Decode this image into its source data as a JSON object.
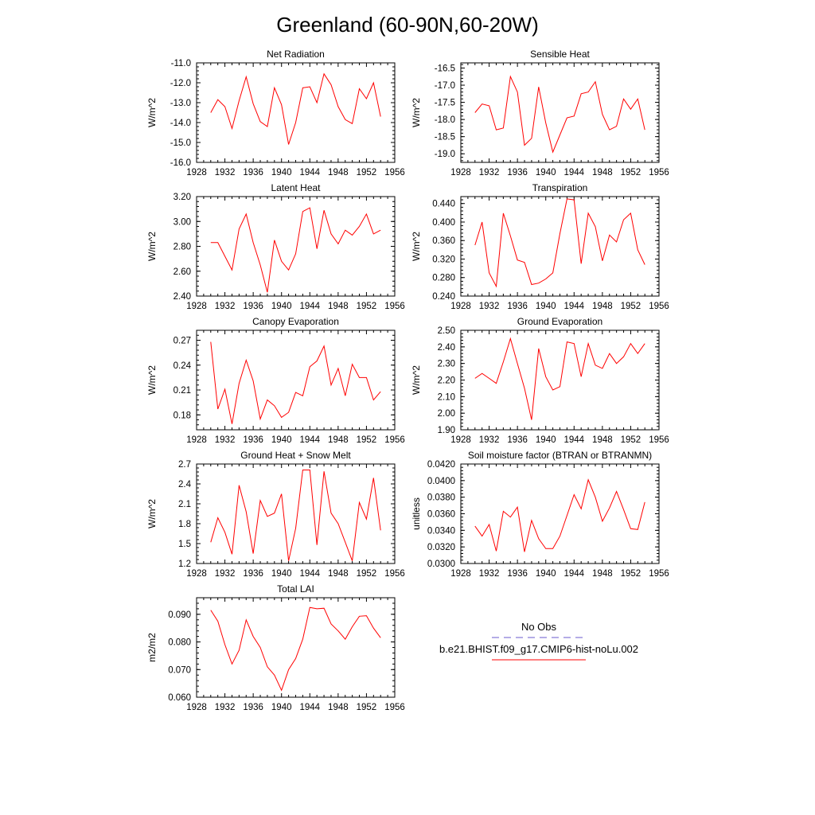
{
  "figure": {
    "title": "Greenland (60-90N,60-20W)",
    "legend": {
      "entries": [
        {
          "label": "No Obs",
          "color": "#6a5acd",
          "style": "dashed"
        },
        {
          "label": "b.e21.BHIST.f09_g17.CMIP6-hist-noLu.002",
          "color": "#ff0000",
          "style": "solid"
        }
      ]
    }
  },
  "chart_data": [
    {
      "type": "line",
      "title": "Net Radiation",
      "ylabel": "W/m^2",
      "xlim": [
        1928,
        1956
      ],
      "xticks": [
        1928,
        1932,
        1936,
        1940,
        1944,
        1948,
        1952,
        1956
      ],
      "ylim": [
        -16.0,
        -11.0
      ],
      "yticks": [
        -16.0,
        -15.0,
        -14.0,
        -13.0,
        -12.0,
        -11.0
      ],
      "ytick_labels": [
        "-16.0",
        "-15.0",
        "-14.0",
        "-13.0",
        "-12.0",
        "-11.0"
      ],
      "series": [
        {
          "color": "#ff0000",
          "x": [
            1930,
            1931,
            1932,
            1933,
            1934,
            1935,
            1936,
            1937,
            1938,
            1939,
            1940,
            1941,
            1942,
            1943,
            1944,
            1945,
            1946,
            1947,
            1948,
            1949,
            1950,
            1951,
            1952,
            1953,
            1954
          ],
          "values": [
            -13.5,
            -12.85,
            -13.2,
            -14.3,
            -12.9,
            -11.7,
            -13.05,
            -13.95,
            -14.2,
            -12.25,
            -13.1,
            -15.1,
            -14.0,
            -12.25,
            -12.2,
            -13.0,
            -11.55,
            -12.1,
            -13.2,
            -13.85,
            -14.05,
            -12.3,
            -12.8,
            -12.0,
            -13.7
          ]
        }
      ]
    },
    {
      "type": "line",
      "title": "Sensible Heat",
      "ylabel": "W/m^2",
      "xlim": [
        1928,
        1956
      ],
      "xticks": [
        1928,
        1932,
        1936,
        1940,
        1944,
        1948,
        1952,
        1956
      ],
      "ylim": [
        -19.25,
        -16.35
      ],
      "yticks": [
        -19.0,
        -18.5,
        -18.0,
        -17.5,
        -17.0,
        -16.5
      ],
      "ytick_labels": [
        "-19.0",
        "-18.5",
        "-18.0",
        "-17.5",
        "-17.0",
        "-16.5"
      ],
      "series": [
        {
          "color": "#ff0000",
          "x": [
            1930,
            1931,
            1932,
            1933,
            1934,
            1935,
            1936,
            1937,
            1938,
            1939,
            1940,
            1941,
            1942,
            1943,
            1944,
            1945,
            1946,
            1947,
            1948,
            1949,
            1950,
            1951,
            1952,
            1953,
            1954
          ],
          "values": [
            -17.8,
            -17.55,
            -17.6,
            -18.3,
            -18.25,
            -16.75,
            -17.2,
            -18.75,
            -18.55,
            -17.05,
            -18.1,
            -18.95,
            -18.45,
            -17.95,
            -17.9,
            -17.25,
            -17.2,
            -16.9,
            -17.85,
            -18.3,
            -18.2,
            -17.4,
            -17.7,
            -17.4,
            -18.3
          ]
        }
      ]
    },
    {
      "type": "line",
      "title": "Latent Heat",
      "ylabel": "W/m^2",
      "xlim": [
        1928,
        1956
      ],
      "xticks": [
        1928,
        1932,
        1936,
        1940,
        1944,
        1948,
        1952,
        1956
      ],
      "ylim": [
        2.4,
        3.2
      ],
      "yticks": [
        2.4,
        2.6,
        2.8,
        3.0,
        3.2
      ],
      "ytick_labels": [
        "2.40",
        "2.60",
        "2.80",
        "3.00",
        "3.20"
      ],
      "series": [
        {
          "color": "#ff0000",
          "x": [
            1930,
            1931,
            1932,
            1933,
            1934,
            1935,
            1936,
            1937,
            1938,
            1939,
            1940,
            1941,
            1942,
            1943,
            1944,
            1945,
            1946,
            1947,
            1948,
            1949,
            1950,
            1951,
            1952,
            1953,
            1954
          ],
          "values": [
            2.83,
            2.83,
            2.72,
            2.61,
            2.94,
            3.06,
            2.83,
            2.65,
            2.43,
            2.85,
            2.68,
            2.61,
            2.74,
            3.08,
            3.11,
            2.78,
            3.09,
            2.9,
            2.82,
            2.93,
            2.89,
            2.96,
            3.06,
            2.9,
            2.93
          ]
        }
      ]
    },
    {
      "type": "line",
      "title": "Transpiration",
      "ylabel": "W/m^2",
      "xlim": [
        1928,
        1956
      ],
      "xticks": [
        1928,
        1932,
        1936,
        1940,
        1944,
        1948,
        1952,
        1956
      ],
      "ylim": [
        0.24,
        0.455
      ],
      "yticks": [
        0.24,
        0.28,
        0.32,
        0.36,
        0.4,
        0.44
      ],
      "ytick_labels": [
        "0.240",
        "0.280",
        "0.320",
        "0.360",
        "0.400",
        "0.440"
      ],
      "series": [
        {
          "color": "#ff0000",
          "x": [
            1930,
            1931,
            1932,
            1933,
            1934,
            1935,
            1936,
            1937,
            1938,
            1939,
            1940,
            1941,
            1942,
            1943,
            1944,
            1945,
            1946,
            1947,
            1948,
            1949,
            1950,
            1951,
            1952,
            1953,
            1954
          ],
          "values": [
            0.35,
            0.4,
            0.29,
            0.261,
            0.419,
            0.37,
            0.318,
            0.313,
            0.265,
            0.268,
            0.277,
            0.29,
            0.375,
            0.45,
            0.448,
            0.31,
            0.419,
            0.39,
            0.316,
            0.372,
            0.357,
            0.405,
            0.419,
            0.34,
            0.308
          ]
        }
      ]
    },
    {
      "type": "line",
      "title": "Canopy Evaporation",
      "ylabel": "W/m^2",
      "xlim": [
        1928,
        1956
      ],
      "xticks": [
        1928,
        1932,
        1936,
        1940,
        1944,
        1948,
        1952,
        1956
      ],
      "ylim": [
        0.162,
        0.282
      ],
      "yticks": [
        0.18,
        0.21,
        0.24,
        0.27
      ],
      "ytick_labels": [
        "0.18",
        "0.21",
        "0.24",
        "0.27"
      ],
      "series": [
        {
          "color": "#ff0000",
          "x": [
            1930,
            1931,
            1932,
            1933,
            1934,
            1935,
            1936,
            1937,
            1938,
            1939,
            1940,
            1941,
            1942,
            1943,
            1944,
            1945,
            1946,
            1947,
            1948,
            1949,
            1950,
            1951,
            1952,
            1953,
            1954
          ],
          "values": [
            0.268,
            0.187,
            0.211,
            0.169,
            0.218,
            0.246,
            0.221,
            0.175,
            0.198,
            0.191,
            0.177,
            0.183,
            0.207,
            0.203,
            0.238,
            0.245,
            0.263,
            0.216,
            0.236,
            0.203,
            0.241,
            0.225,
            0.225,
            0.198,
            0.208
          ]
        }
      ]
    },
    {
      "type": "line",
      "title": "Ground Evaporation",
      "ylabel": "W/m^2",
      "xlim": [
        1928,
        1956
      ],
      "xticks": [
        1928,
        1932,
        1936,
        1940,
        1944,
        1948,
        1952,
        1956
      ],
      "ylim": [
        1.9,
        2.5
      ],
      "yticks": [
        1.9,
        2.0,
        2.1,
        2.2,
        2.3,
        2.4,
        2.5
      ],
      "ytick_labels": [
        "1.90",
        "2.00",
        "2.10",
        "2.20",
        "2.30",
        "2.40",
        "2.50"
      ],
      "series": [
        {
          "color": "#ff0000",
          "x": [
            1930,
            1931,
            1932,
            1933,
            1934,
            1935,
            1936,
            1937,
            1938,
            1939,
            1940,
            1941,
            1942,
            1943,
            1944,
            1945,
            1946,
            1947,
            1948,
            1949,
            1950,
            1951,
            1952,
            1953,
            1954
          ],
          "values": [
            2.21,
            2.24,
            2.21,
            2.18,
            2.31,
            2.45,
            2.3,
            2.15,
            1.96,
            2.39,
            2.22,
            2.14,
            2.16,
            2.43,
            2.42,
            2.22,
            2.42,
            2.29,
            2.27,
            2.36,
            2.3,
            2.34,
            2.42,
            2.36,
            2.42
          ]
        }
      ]
    },
    {
      "type": "line",
      "title": "Ground Heat + Snow Melt",
      "ylabel": "W/m^2",
      "xlim": [
        1928,
        1956
      ],
      "xticks": [
        1928,
        1932,
        1936,
        1940,
        1944,
        1948,
        1952,
        1956
      ],
      "ylim": [
        1.2,
        2.7
      ],
      "yticks": [
        1.2,
        1.5,
        1.8,
        2.1,
        2.4,
        2.7
      ],
      "ytick_labels": [
        "1.2",
        "1.5",
        "1.8",
        "2.1",
        "2.4",
        "2.7"
      ],
      "series": [
        {
          "color": "#ff0000",
          "x": [
            1930,
            1931,
            1932,
            1933,
            1934,
            1935,
            1936,
            1937,
            1938,
            1939,
            1940,
            1941,
            1942,
            1943,
            1944,
            1945,
            1946,
            1947,
            1948,
            1949,
            1950,
            1951,
            1952,
            1953,
            1954
          ],
          "values": [
            1.52,
            1.89,
            1.67,
            1.34,
            2.38,
            1.98,
            1.35,
            2.15,
            1.91,
            1.96,
            2.25,
            1.24,
            1.73,
            2.61,
            2.61,
            1.48,
            2.59,
            1.96,
            1.8,
            1.52,
            1.24,
            2.12,
            1.87,
            2.49,
            1.7
          ]
        }
      ]
    },
    {
      "type": "line",
      "title": "Soil moisture factor (BTRAN or BTRANMN)",
      "ylabel": "unitless",
      "xlim": [
        1928,
        1956
      ],
      "xticks": [
        1928,
        1932,
        1936,
        1940,
        1944,
        1948,
        1952,
        1956
      ],
      "ylim": [
        0.03,
        0.042
      ],
      "yticks": [
        0.03,
        0.032,
        0.034,
        0.036,
        0.038,
        0.04,
        0.042
      ],
      "ytick_labels": [
        "0.0300",
        "0.0320",
        "0.0340",
        "0.0360",
        "0.0380",
        "0.0400",
        "0.0420"
      ],
      "series": [
        {
          "color": "#ff0000",
          "x": [
            1930,
            1931,
            1932,
            1933,
            1934,
            1935,
            1936,
            1937,
            1938,
            1939,
            1940,
            1941,
            1942,
            1943,
            1944,
            1945,
            1946,
            1947,
            1948,
            1949,
            1950,
            1951,
            1952,
            1953,
            1954
          ],
          "values": [
            0.0345,
            0.0333,
            0.0347,
            0.0315,
            0.0363,
            0.0356,
            0.0368,
            0.0314,
            0.0352,
            0.033,
            0.0318,
            0.0318,
            0.0333,
            0.0358,
            0.0383,
            0.0366,
            0.0401,
            0.038,
            0.0351,
            0.0367,
            0.0387,
            0.0365,
            0.0342,
            0.0341,
            0.0374
          ]
        }
      ]
    },
    {
      "type": "line",
      "title": "Total LAI",
      "ylabel": "m2/m2",
      "xlim": [
        1928,
        1956
      ],
      "xticks": [
        1928,
        1932,
        1936,
        1940,
        1944,
        1948,
        1952,
        1956
      ],
      "ylim": [
        0.06,
        0.096
      ],
      "yticks": [
        0.06,
        0.07,
        0.08,
        0.09
      ],
      "ytick_labels": [
        "0.060",
        "0.070",
        "0.080",
        "0.090"
      ],
      "series": [
        {
          "color": "#ff0000",
          "x": [
            1930,
            1931,
            1932,
            1933,
            1934,
            1935,
            1936,
            1937,
            1938,
            1939,
            1940,
            1941,
            1942,
            1943,
            1944,
            1945,
            1946,
            1947,
            1948,
            1949,
            1950,
            1951,
            1952,
            1953,
            1954
          ],
          "values": [
            0.0915,
            0.0875,
            0.079,
            0.072,
            0.077,
            0.088,
            0.082,
            0.078,
            0.071,
            0.068,
            0.0625,
            0.07,
            0.074,
            0.081,
            0.0925,
            0.092,
            0.0922,
            0.0865,
            0.084,
            0.081,
            0.0855,
            0.0893,
            0.0895,
            0.085,
            0.0815
          ]
        }
      ]
    }
  ]
}
